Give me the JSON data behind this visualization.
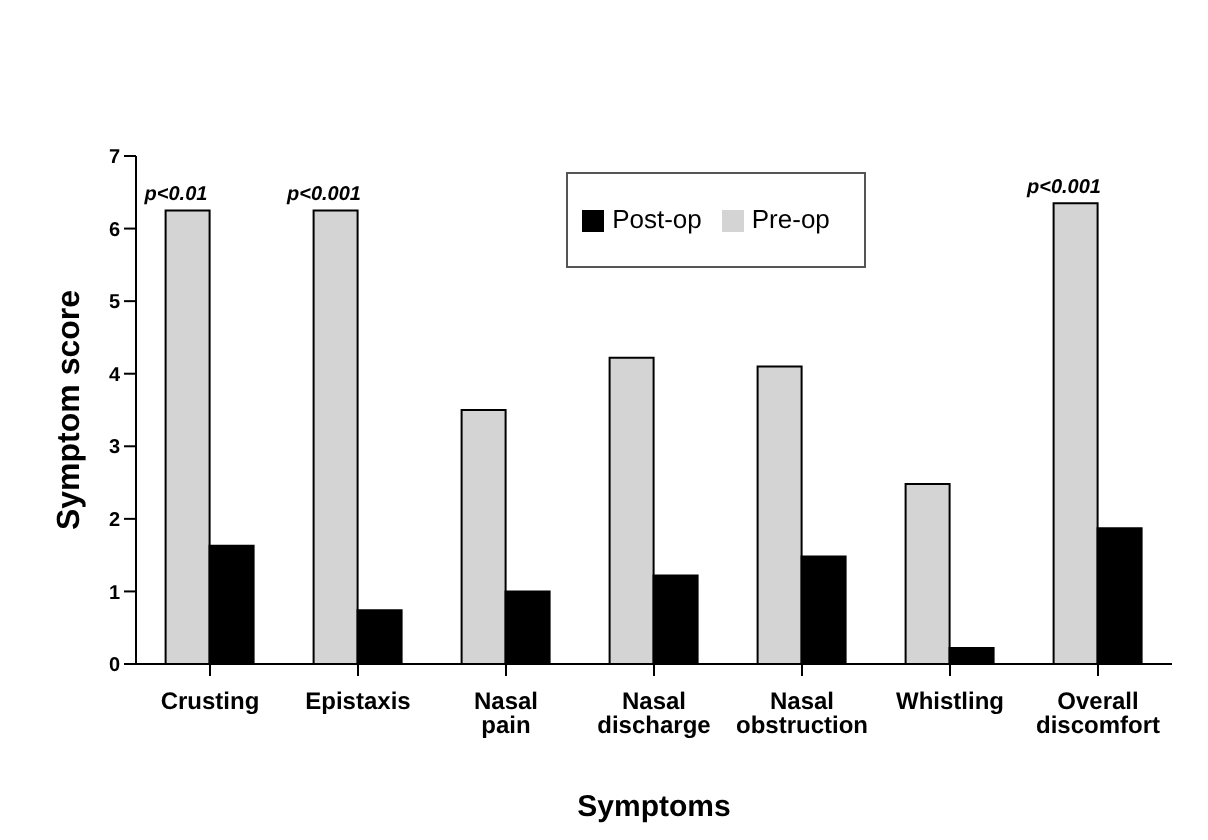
{
  "chart_data": {
    "type": "bar",
    "xlabel": "Symptoms",
    "ylabel": "Symptom score",
    "categories": [
      "Crusting",
      "Epistaxis",
      "Nasal pain",
      "Nasal discharge",
      "Nasal obstruction",
      "Whistling",
      "Overall discomfort"
    ],
    "series": [
      {
        "name": "Pre-op",
        "color": "#d4d4d4",
        "values": [
          6.25,
          6.25,
          3.5,
          4.22,
          4.1,
          2.48,
          6.35
        ]
      },
      {
        "name": "Post-op",
        "color": "#000000",
        "values": [
          1.63,
          0.74,
          1.0,
          1.22,
          1.48,
          0.22,
          1.87
        ]
      }
    ],
    "ylim": [
      0,
      7
    ],
    "yticks": [
      0,
      1,
      2,
      3,
      4,
      5,
      6,
      7
    ],
    "grid": false,
    "legend": "top",
    "annotations": [
      {
        "text": "p<0.01",
        "x": "Crusting",
        "y": 6.25
      },
      {
        "text": "p<0.001",
        "x": "Epistaxis",
        "y": 6.25
      },
      {
        "text": "p<0.001",
        "x": "Overall discomfort",
        "y": 6.35
      }
    ]
  }
}
